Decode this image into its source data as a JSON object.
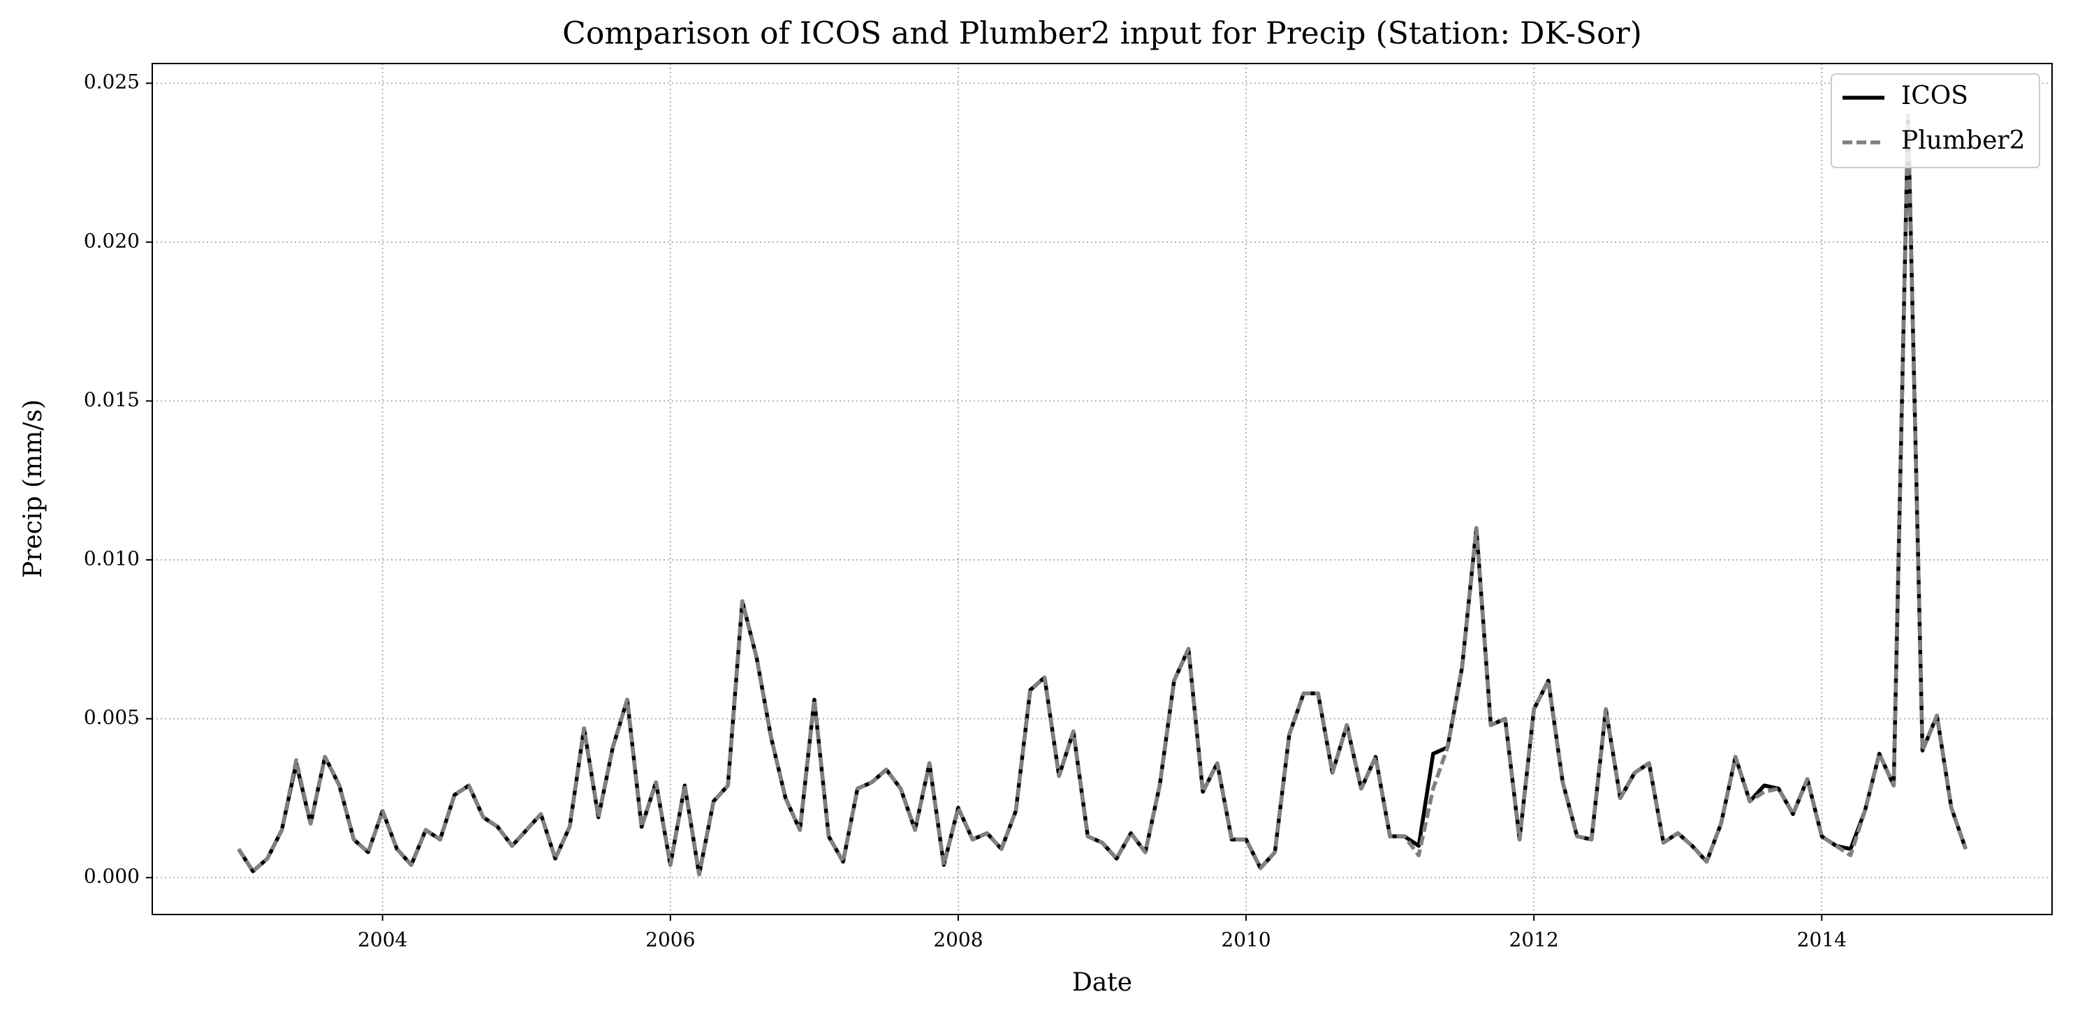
{
  "chart_data": {
    "type": "line",
    "title": "Comparison of ICOS and Plumber2 input for Precip (Station: DK-Sor)",
    "xlabel": "Date",
    "ylabel": "Precip (mm/s)",
    "x": [
      2003.0,
      2003.1,
      2003.2,
      2003.3,
      2003.4,
      2003.5,
      2003.6,
      2003.7,
      2003.8,
      2003.9,
      2004.0,
      2004.1,
      2004.2,
      2004.3,
      2004.4,
      2004.5,
      2004.6,
      2004.7,
      2004.8,
      2004.9,
      2005.0,
      2005.1,
      2005.2,
      2005.3,
      2005.4,
      2005.5,
      2005.6,
      2005.7,
      2005.8,
      2005.9,
      2006.0,
      2006.1,
      2006.2,
      2006.3,
      2006.4,
      2006.5,
      2006.6,
      2006.7,
      2006.8,
      2006.9,
      2007.0,
      2007.1,
      2007.2,
      2007.3,
      2007.4,
      2007.5,
      2007.6,
      2007.7,
      2007.8,
      2007.9,
      2008.0,
      2008.1,
      2008.2,
      2008.3,
      2008.4,
      2008.5,
      2008.6,
      2008.7,
      2008.8,
      2008.9,
      2009.0,
      2009.1,
      2009.2,
      2009.3,
      2009.4,
      2009.5,
      2009.6,
      2009.7,
      2009.8,
      2009.9,
      2010.0,
      2010.1,
      2010.2,
      2010.3,
      2010.4,
      2010.5,
      2010.6,
      2010.7,
      2010.8,
      2010.9,
      2011.0,
      2011.1,
      2011.2,
      2011.3,
      2011.4,
      2011.5,
      2011.6,
      2011.7,
      2011.8,
      2011.9,
      2012.0,
      2012.1,
      2012.2,
      2012.3,
      2012.4,
      2012.5,
      2012.6,
      2012.7,
      2012.8,
      2012.9,
      2013.0,
      2013.1,
      2013.2,
      2013.3,
      2013.4,
      2013.5,
      2013.6,
      2013.7,
      2013.8,
      2013.9,
      2014.0,
      2014.1,
      2014.2,
      2014.3,
      2014.4,
      2014.5,
      2014.6,
      2014.7,
      2014.8,
      2014.9,
      2015.0
    ],
    "series": [
      {
        "name": "ICOS",
        "color": "#000000",
        "dashed": false,
        "values": [
          0.0009,
          0.0002,
          0.0006,
          0.0015,
          0.0036,
          0.0017,
          0.0038,
          0.0029,
          0.0012,
          0.0008,
          0.0021,
          0.0009,
          0.0004,
          0.0015,
          0.0012,
          0.0026,
          0.0029,
          0.0019,
          0.0016,
          0.001,
          0.0015,
          0.002,
          0.0006,
          0.0016,
          0.0047,
          0.0019,
          0.0041,
          0.0056,
          0.0016,
          0.003,
          0.0004,
          0.0029,
          0.0001,
          0.0024,
          0.0029,
          0.0087,
          0.0069,
          0.0044,
          0.0025,
          0.0015,
          0.0056,
          0.0013,
          0.0005,
          0.0028,
          0.003,
          0.0034,
          0.0028,
          0.0015,
          0.0036,
          0.0004,
          0.0022,
          0.0012,
          0.0014,
          0.0009,
          0.0021,
          0.0059,
          0.0063,
          0.0032,
          0.0046,
          0.0013,
          0.0011,
          0.0006,
          0.0014,
          0.0008,
          0.0029,
          0.0062,
          0.0072,
          0.0027,
          0.0036,
          0.0012,
          0.0012,
          0.0003,
          0.0008,
          0.0045,
          0.0058,
          0.0058,
          0.0033,
          0.0048,
          0.0028,
          0.0038,
          0.0013,
          0.0013,
          0.001,
          0.0039,
          0.0041,
          0.0066,
          0.011,
          0.0048,
          0.005,
          0.0012,
          0.0053,
          0.0062,
          0.003,
          0.0013,
          0.0012,
          0.0053,
          0.0025,
          0.0033,
          0.0036,
          0.0011,
          0.0014,
          0.001,
          0.0005,
          0.0017,
          0.0038,
          0.0024,
          0.0029,
          0.0028,
          0.002,
          0.0031,
          0.0013,
          0.001,
          0.0009,
          0.0021,
          0.0039,
          0.0029,
          0.024,
          0.004,
          0.0051,
          0.0022,
          0.0009
        ]
      },
      {
        "name": "Plumber2",
        "color": "#808080",
        "dashed": true,
        "values": [
          0.0009,
          0.0002,
          0.0006,
          0.0015,
          0.0037,
          0.0017,
          0.0038,
          0.0029,
          0.0012,
          0.0008,
          0.0021,
          0.0009,
          0.0004,
          0.0015,
          0.0012,
          0.0026,
          0.0029,
          0.0019,
          0.0016,
          0.001,
          0.0015,
          0.002,
          0.0006,
          0.0016,
          0.0047,
          0.0019,
          0.0041,
          0.0056,
          0.0016,
          0.003,
          0.0004,
          0.0029,
          0.0001,
          0.0024,
          0.0029,
          0.0087,
          0.0069,
          0.0044,
          0.0025,
          0.0015,
          0.0056,
          0.0013,
          0.0005,
          0.0028,
          0.003,
          0.0034,
          0.0028,
          0.0015,
          0.0036,
          0.0004,
          0.0022,
          0.0012,
          0.0014,
          0.0009,
          0.0021,
          0.0059,
          0.0063,
          0.0032,
          0.0046,
          0.0013,
          0.0011,
          0.0006,
          0.0014,
          0.0008,
          0.0029,
          0.0062,
          0.0072,
          0.0027,
          0.0036,
          0.0012,
          0.0012,
          0.0003,
          0.0008,
          0.0045,
          0.0058,
          0.0058,
          0.0033,
          0.0048,
          0.0028,
          0.0038,
          0.0013,
          0.0013,
          0.0007,
          0.0028,
          0.0041,
          0.0066,
          0.011,
          0.0048,
          0.005,
          0.0012,
          0.0053,
          0.0062,
          0.003,
          0.0013,
          0.0012,
          0.0053,
          0.0025,
          0.0033,
          0.0036,
          0.0011,
          0.0014,
          0.001,
          0.0005,
          0.0017,
          0.0038,
          0.0024,
          0.0027,
          0.0028,
          0.002,
          0.0031,
          0.0013,
          0.001,
          0.0007,
          0.0021,
          0.0039,
          0.0029,
          0.024,
          0.004,
          0.0051,
          0.0022,
          0.0009
        ]
      }
    ],
    "xlim": [
      2002.4,
      2015.6
    ],
    "xticks": [
      2004,
      2006,
      2008,
      2010,
      2012,
      2014
    ],
    "ylim": [
      -0.00116,
      0.02562
    ],
    "yticks": [
      {
        "value": 0,
        "label": "0.000"
      },
      {
        "value": 0.005,
        "label": "0.005"
      },
      {
        "value": 0.01,
        "label": "0.010"
      },
      {
        "value": 0.015,
        "label": "0.015"
      },
      {
        "value": 0.02,
        "label": "0.020"
      },
      {
        "value": 0.025,
        "label": "0.025"
      }
    ],
    "grid": true,
    "legend": "upper right"
  }
}
